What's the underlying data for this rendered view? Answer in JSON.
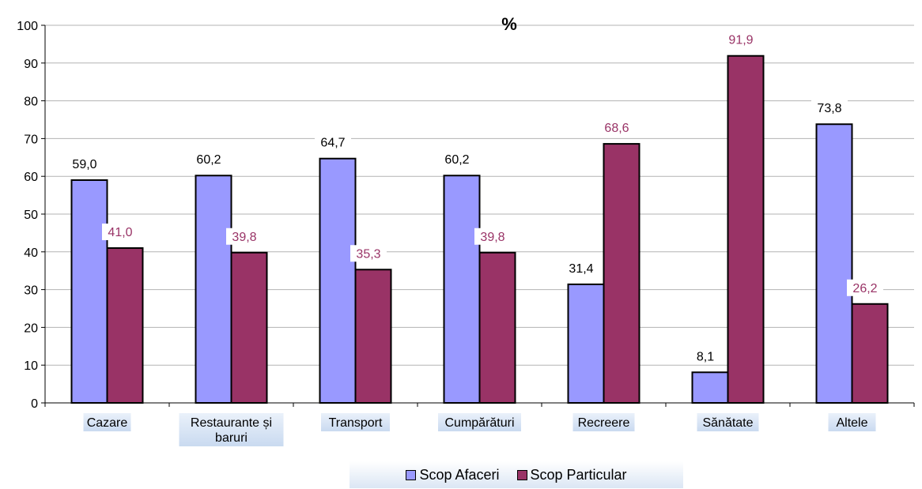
{
  "chart_data": {
    "type": "bar",
    "title": "%",
    "categories": [
      "Cazare",
      "Restaurante și baruri",
      "Transport",
      "Cumpărături",
      "Recreere",
      "Sănătate",
      "Altele"
    ],
    "category_lines": [
      [
        "Cazare"
      ],
      [
        "Restaurante și",
        "baruri"
      ],
      [
        "Transport"
      ],
      [
        "Cumpărături"
      ],
      [
        "Recreere"
      ],
      [
        "Sănătate"
      ],
      [
        "Altele"
      ]
    ],
    "series": [
      {
        "name": "Scop Afaceri",
        "values": [
          59.0,
          60.2,
          64.7,
          60.2,
          31.4,
          8.1,
          73.8
        ],
        "labels": [
          "59,0",
          "60,2",
          "64,7",
          "60,2",
          "31,4",
          "8,1",
          "73,8"
        ],
        "color": "#9999ff",
        "label_color": "#000000"
      },
      {
        "name": "Scop Particular",
        "values": [
          41.0,
          39.8,
          35.3,
          39.8,
          68.6,
          91.9,
          26.2
        ],
        "labels": [
          "41,0",
          "39,8",
          "35,3",
          "39,8",
          "68,6",
          "91,9",
          "26,2"
        ],
        "color": "#993366",
        "label_color": "#993366"
      }
    ],
    "ylim": [
      0,
      100
    ],
    "yticks": [
      "0",
      "10",
      "20",
      "30",
      "40",
      "50",
      "60",
      "70",
      "80",
      "90",
      "100"
    ],
    "grid": true,
    "legend_position": "bottom"
  }
}
